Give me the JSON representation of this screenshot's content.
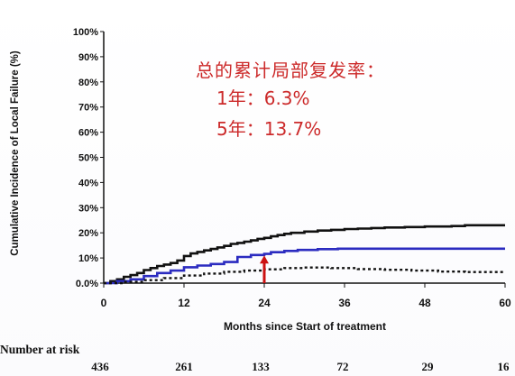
{
  "chart_data": {
    "type": "line",
    "ylabel": "Cumulative Incidence of Local Failure (%)",
    "xlabel": "Months since Start of treatment",
    "xlim": [
      0,
      60
    ],
    "ylim": [
      0,
      100
    ],
    "x_ticks": [
      0,
      12,
      24,
      36,
      48,
      60
    ],
    "y_ticks": [
      0,
      10,
      20,
      30,
      40,
      50,
      60,
      70,
      80,
      90,
      100
    ],
    "y_tick_labels": [
      "0.0%",
      "10%",
      "20%",
      "30%",
      "40%",
      "50%",
      "60%",
      "70%",
      "80%",
      "90%",
      "100%"
    ],
    "grid": false,
    "series": [
      {
        "color": "#111111",
        "style": "solid",
        "points": [
          [
            0,
            0
          ],
          [
            1,
            0.8
          ],
          [
            2,
            1.5
          ],
          [
            3,
            2.5
          ],
          [
            4,
            3.2
          ],
          [
            5,
            4.0
          ],
          [
            6,
            5.2
          ],
          [
            7,
            6.0
          ],
          [
            8,
            6.8
          ],
          [
            9,
            7.4
          ],
          [
            10,
            8.0
          ],
          [
            11,
            9.0
          ],
          [
            12,
            10.8
          ],
          [
            13,
            11.8
          ],
          [
            14,
            12.4
          ],
          [
            15,
            13.0
          ],
          [
            16,
            13.6
          ],
          [
            17,
            14.2
          ],
          [
            18,
            14.8
          ],
          [
            19,
            15.6
          ],
          [
            20,
            16.0
          ],
          [
            21,
            16.5
          ],
          [
            22,
            17.0
          ],
          [
            23,
            17.6
          ],
          [
            24,
            18.0
          ],
          [
            25,
            18.6
          ],
          [
            26,
            19.1
          ],
          [
            27,
            19.6
          ],
          [
            28,
            20.0
          ],
          [
            30,
            20.5
          ],
          [
            32,
            20.9
          ],
          [
            34,
            21.2
          ],
          [
            36,
            21.5
          ],
          [
            38,
            21.7
          ],
          [
            40,
            21.9
          ],
          [
            42,
            22.1
          ],
          [
            45,
            22.3
          ],
          [
            48,
            22.5
          ],
          [
            52,
            22.7
          ],
          [
            54,
            23.0
          ],
          [
            57,
            23.0
          ],
          [
            60,
            23.0
          ]
        ]
      },
      {
        "color": "#2b2bc0",
        "style": "solid",
        "points": [
          [
            0,
            0
          ],
          [
            2,
            0.8
          ],
          [
            4,
            1.5
          ],
          [
            6,
            2.8
          ],
          [
            8,
            4.0
          ],
          [
            10,
            5.0
          ],
          [
            12,
            6.3
          ],
          [
            14,
            7.0
          ],
          [
            16,
            7.6
          ],
          [
            18,
            8.4
          ],
          [
            20,
            10.4
          ],
          [
            22,
            11.2
          ],
          [
            24,
            11.6
          ],
          [
            25,
            12.3
          ],
          [
            27,
            12.8
          ],
          [
            29,
            13.2
          ],
          [
            32,
            13.5
          ],
          [
            35,
            13.7
          ],
          [
            40,
            13.7
          ],
          [
            45,
            13.7
          ],
          [
            50,
            13.7
          ],
          [
            55,
            13.7
          ],
          [
            60,
            13.7
          ]
        ]
      },
      {
        "color": "#111111",
        "style": "dotted",
        "points": [
          [
            0,
            0
          ],
          [
            3,
            0.5
          ],
          [
            6,
            1.2
          ],
          [
            9,
            2.0
          ],
          [
            12,
            3.0
          ],
          [
            15,
            3.8
          ],
          [
            18,
            4.5
          ],
          [
            21,
            5.0
          ],
          [
            24,
            5.5
          ],
          [
            27,
            6.0
          ],
          [
            30,
            6.2
          ],
          [
            34,
            6.0
          ],
          [
            38,
            5.6
          ],
          [
            42,
            5.3
          ],
          [
            46,
            5.0
          ],
          [
            50,
            4.6
          ],
          [
            54,
            4.4
          ],
          [
            57,
            4.4
          ],
          [
            60,
            4.4
          ]
        ]
      }
    ],
    "arrow": {
      "x": 24,
      "y_from": 0.0,
      "y_to": 11.0,
      "color": "#cc1111"
    },
    "annotation": {
      "title": "总的累计局部复发率：",
      "line1": "1年：6.3%",
      "line2": "5年：13.7%",
      "color": "#cc2a2a"
    },
    "number_at_risk": {
      "title": "Number at risk",
      "values": [
        "436",
        "261",
        "133",
        "72",
        "29",
        "16"
      ]
    }
  }
}
